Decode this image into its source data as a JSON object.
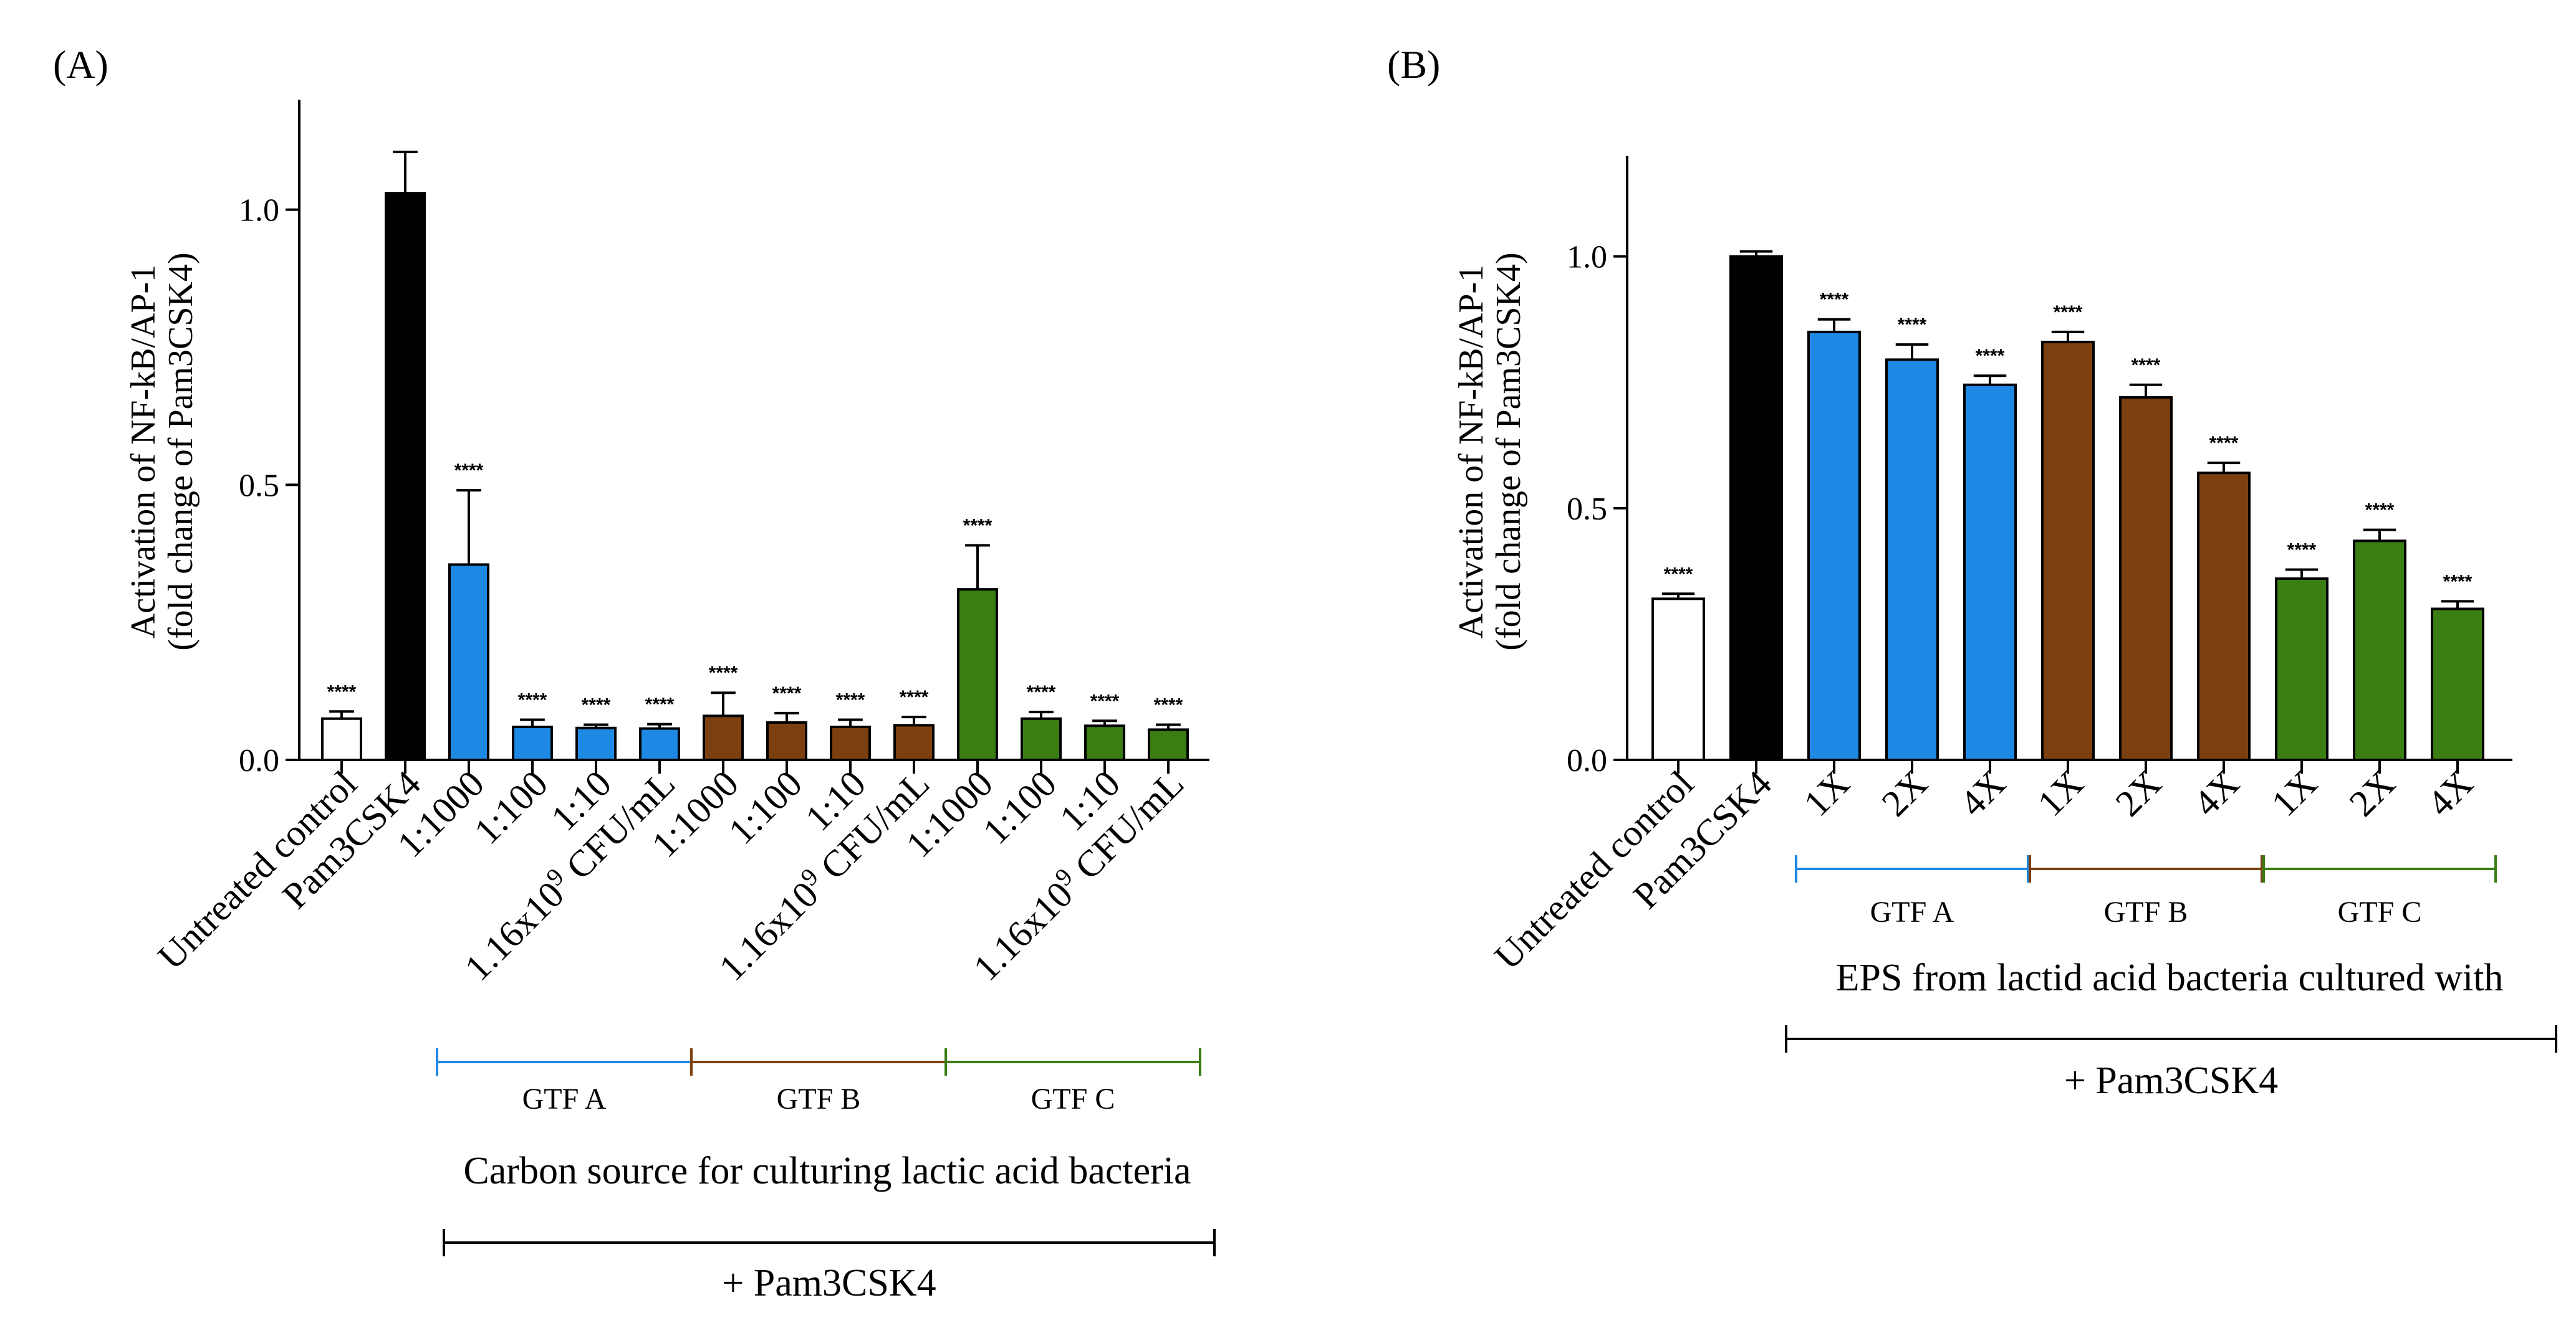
{
  "panels": [
    {
      "label": "(A)",
      "chart_data": {
        "type": "bar",
        "title": "",
        "ylabel_line1": "Activation of NF-kB/AP-1",
        "ylabel_line2": "(fold change of Pam3CSK4)",
        "xlabel": "Carbon source for culturing lactic acid bacteria",
        "bracket_label": "+ Pam3CSK4",
        "ylim": [
          0,
          1.2
        ],
        "yticks": [
          0.0,
          0.5,
          1.0
        ],
        "ytick_labels": [
          "0.0",
          "0.5",
          "1.0"
        ],
        "categories": [
          "Untreated control",
          "Pam3CSK4",
          "1:1000",
          "1:100",
          "1:10",
          "1.16x10^9 CFU/mL",
          "1:1000",
          "1:100",
          "1:10",
          "1.16x10^9 CFU/mL",
          "1:1000",
          "1:100",
          "1:10",
          "1.16x10^9 CFU/mL"
        ],
        "values": [
          0.075,
          1.03,
          0.355,
          0.06,
          0.058,
          0.057,
          0.08,
          0.068,
          0.06,
          0.063,
          0.31,
          0.075,
          0.062,
          0.055
        ],
        "errors": [
          0.013,
          0.075,
          0.135,
          0.013,
          0.006,
          0.008,
          0.042,
          0.017,
          0.013,
          0.015,
          0.08,
          0.012,
          0.009,
          0.009
        ],
        "significance": [
          "****",
          "",
          "****",
          "****",
          "****",
          "****",
          "****",
          "****",
          "****",
          "****",
          "****",
          "****",
          "****",
          "****"
        ],
        "groups": [
          {
            "name": "GTF A",
            "color": "#1e88e5",
            "start": 2,
            "end": 5
          },
          {
            "name": "GTF B",
            "color": "#7b3f10",
            "start": 6,
            "end": 9
          },
          {
            "name": "GTF C",
            "color": "#3a7d12",
            "start": 10,
            "end": 13
          }
        ]
      }
    },
    {
      "label": "(B)",
      "chart_data": {
        "type": "bar",
        "title": "",
        "ylabel_line1": "Activation of NF-kB/AP-1",
        "ylabel_line2": "(fold change of Pam3CSK4)",
        "xlabel": "EPS from lactid acid bacteria cultured with",
        "bracket_label": "+ Pam3CSK4",
        "ylim": [
          0,
          1.2
        ],
        "yticks": [
          0.0,
          0.5,
          1.0
        ],
        "ytick_labels": [
          "0.0",
          "0.5",
          "1.0"
        ],
        "categories": [
          "Untreated control",
          "Pam3CSK4",
          "1X",
          "2X",
          "4X",
          "1X",
          "2X",
          "4X",
          "1X",
          "2X",
          "4X"
        ],
        "values": [
          0.32,
          1.0,
          0.85,
          0.795,
          0.745,
          0.83,
          0.72,
          0.57,
          0.36,
          0.435,
          0.3
        ],
        "errors": [
          0.01,
          0.01,
          0.025,
          0.03,
          0.018,
          0.02,
          0.025,
          0.02,
          0.018,
          0.022,
          0.015
        ],
        "significance": [
          "****",
          "",
          "****",
          "****",
          "****",
          "****",
          "****",
          "****",
          "****",
          "****",
          "****"
        ],
        "groups": [
          {
            "name": "GTF A",
            "color": "#1e88e5",
            "start": 2,
            "end": 4
          },
          {
            "name": "GTF B",
            "color": "#7b3f10",
            "start": 5,
            "end": 7
          },
          {
            "name": "GTF C",
            "color": "#3a7d12",
            "start": 8,
            "end": 10
          }
        ]
      }
    }
  ],
  "colors": {
    "untreated": "#ffffff",
    "pam3csk4": "#000000",
    "gtf_a": "#1e88e5",
    "gtf_b": "#7b3f10",
    "gtf_c": "#3a7d12"
  }
}
